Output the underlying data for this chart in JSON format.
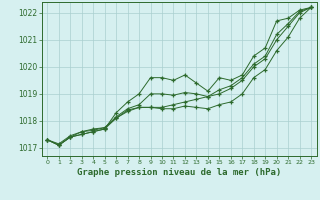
{
  "xlabel": "Graphe pression niveau de la mer (hPa)",
  "xlim": [
    -0.5,
    23.5
  ],
  "ylim": [
    1016.7,
    1022.4
  ],
  "yticks": [
    1017,
    1018,
    1019,
    1020,
    1021,
    1022
  ],
  "xticks": [
    0,
    1,
    2,
    3,
    4,
    5,
    6,
    7,
    8,
    9,
    10,
    11,
    12,
    13,
    14,
    15,
    16,
    17,
    18,
    19,
    20,
    21,
    22,
    23
  ],
  "background_color": "#d6f0f0",
  "grid_color": "#aacfcf",
  "line_color": "#2d6a2d",
  "marker": "+",
  "line1": [
    1017.3,
    1017.1,
    1017.4,
    1017.5,
    1017.6,
    1017.7,
    1018.3,
    1018.7,
    1019.0,
    1019.6,
    1019.6,
    1019.5,
    1019.7,
    1019.4,
    1019.1,
    1019.6,
    1019.5,
    1019.7,
    1020.4,
    1020.7,
    1021.7,
    1021.8,
    1022.1,
    1022.2
  ],
  "line2": [
    1017.3,
    1017.1,
    1017.4,
    1017.5,
    1017.6,
    1017.7,
    1018.1,
    1018.4,
    1018.5,
    1018.5,
    1018.5,
    1018.6,
    1018.7,
    1018.8,
    1018.9,
    1019.0,
    1019.2,
    1019.5,
    1020.0,
    1020.3,
    1021.0,
    1021.5,
    1022.0,
    1022.2
  ],
  "line3": [
    1017.3,
    1017.1,
    1017.4,
    1017.6,
    1017.65,
    1017.75,
    1018.1,
    1018.35,
    1018.5,
    1018.5,
    1018.45,
    1018.45,
    1018.55,
    1018.5,
    1018.45,
    1018.6,
    1018.7,
    1019.0,
    1019.6,
    1019.9,
    1020.6,
    1021.1,
    1021.8,
    1022.2
  ],
  "line4": [
    1017.3,
    1017.15,
    1017.45,
    1017.6,
    1017.7,
    1017.75,
    1018.15,
    1018.45,
    1018.6,
    1019.0,
    1019.0,
    1018.95,
    1019.05,
    1019.0,
    1018.9,
    1019.15,
    1019.3,
    1019.6,
    1020.1,
    1020.4,
    1021.2,
    1021.6,
    1022.05,
    1022.2
  ]
}
